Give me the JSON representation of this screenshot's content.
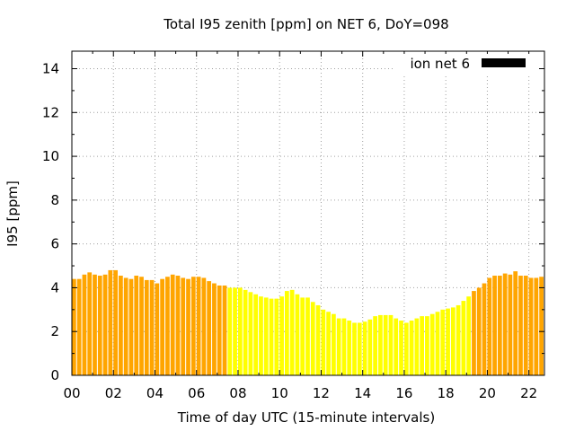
{
  "chart_data": {
    "type": "bar",
    "title": "Total I95 zenith [ppm] on NET 6, DoY=098",
    "xlabel": "Time of day UTC (15-minute intervals)",
    "ylabel": "I95 [ppm]",
    "legend": {
      "label": "ion net 6",
      "placement": "top-right",
      "color": "#000000"
    },
    "xlim": [
      0,
      22.75
    ],
    "ylim": [
      0,
      14.8
    ],
    "x_ticks": [
      "00",
      "02",
      "04",
      "06",
      "08",
      "10",
      "12",
      "14",
      "16",
      "18",
      "20",
      "22"
    ],
    "y_ticks": [
      "0",
      "2",
      "4",
      "6",
      "8",
      "10",
      "12",
      "14"
    ],
    "grid": true,
    "colors": {
      "night": "#ffa500",
      "day": "#ffff00"
    },
    "interval_hours": 0.25,
    "day_start_hour": 7.5,
    "day_end_hour": 19.25,
    "values": [
      4.4,
      4.4,
      4.6,
      4.7,
      4.6,
      4.55,
      4.6,
      4.8,
      4.8,
      4.55,
      4.45,
      4.4,
      4.55,
      4.5,
      4.35,
      4.35,
      4.2,
      4.4,
      4.5,
      4.6,
      4.55,
      4.45,
      4.4,
      4.5,
      4.5,
      4.45,
      4.3,
      4.2,
      4.1,
      4.1,
      4.0,
      4.0,
      4.0,
      3.9,
      3.8,
      3.7,
      3.6,
      3.55,
      3.5,
      3.5,
      3.6,
      3.85,
      3.9,
      3.7,
      3.55,
      3.55,
      3.35,
      3.2,
      3.0,
      2.9,
      2.8,
      2.6,
      2.6,
      2.5,
      2.4,
      2.4,
      2.45,
      2.55,
      2.7,
      2.75,
      2.75,
      2.75,
      2.6,
      2.5,
      2.4,
      2.5,
      2.6,
      2.7,
      2.7,
      2.8,
      2.9,
      3.0,
      3.05,
      3.1,
      3.2,
      3.4,
      3.6,
      3.85,
      4.0,
      4.2,
      4.45,
      4.55,
      4.55,
      4.65,
      4.6,
      4.75,
      4.55,
      4.55,
      4.45,
      4.45,
      4.5,
      4.4
    ]
  }
}
